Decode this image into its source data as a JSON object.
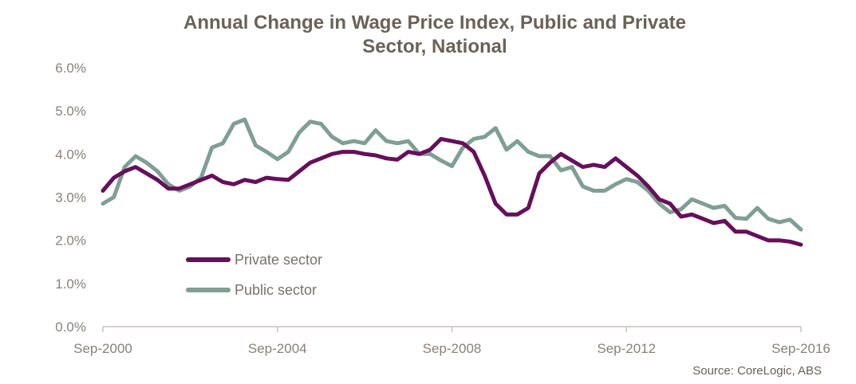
{
  "chart_data": {
    "type": "line",
    "title_lines": [
      "Annual Change in Wage Price Index, Public and Private",
      "Sector, National"
    ],
    "source": "Source: CoreLogic, ABS",
    "x_tick_labels": [
      "Sep-2000",
      "Sep-2004",
      "Sep-2008",
      "Sep-2012",
      "Sep-2016"
    ],
    "y_tick_labels": [
      "0.0%",
      "1.0%",
      "2.0%",
      "3.0%",
      "4.0%",
      "5.0%",
      "6.0%"
    ],
    "ylim": [
      0,
      6
    ],
    "x_start": "Sep-2000",
    "x_end": "Sep-2016",
    "frequency": "quarterly",
    "colors": {
      "private": "#660f5c",
      "public": "#7f9f93",
      "axis": "#c8c2bd",
      "title": "#6b6157",
      "tick": "#8a8079"
    },
    "legend_placement": "lower-left",
    "series": [
      {
        "key": "private",
        "name": "Private sector",
        "values": [
          3.15,
          3.45,
          3.6,
          3.7,
          3.55,
          3.4,
          3.2,
          3.2,
          3.3,
          3.4,
          3.5,
          3.35,
          3.3,
          3.4,
          3.35,
          3.45,
          3.42,
          3.4,
          3.6,
          3.8,
          3.9,
          4.0,
          4.05,
          4.05,
          4.0,
          3.97,
          3.9,
          3.87,
          4.05,
          4.0,
          4.1,
          4.35,
          4.3,
          4.25,
          4.05,
          3.5,
          2.85,
          2.6,
          2.6,
          2.75,
          3.55,
          3.8,
          4.0,
          3.85,
          3.7,
          3.75,
          3.7,
          3.9,
          3.7,
          3.5,
          3.25,
          2.95,
          2.85,
          2.55,
          2.6,
          2.5,
          2.4,
          2.45,
          2.2,
          2.2,
          2.1,
          2.0,
          2.0,
          1.97,
          1.9
        ]
      },
      {
        "key": "public",
        "name": "Public sector",
        "values": [
          2.85,
          3.0,
          3.7,
          3.95,
          3.8,
          3.6,
          3.3,
          3.15,
          3.25,
          3.45,
          4.15,
          4.25,
          4.7,
          4.8,
          4.2,
          4.05,
          3.88,
          4.05,
          4.5,
          4.75,
          4.7,
          4.4,
          4.25,
          4.3,
          4.25,
          4.55,
          4.3,
          4.25,
          4.3,
          4.0,
          4.0,
          3.85,
          3.72,
          4.15,
          4.35,
          4.4,
          4.6,
          4.1,
          4.3,
          4.05,
          3.95,
          3.95,
          3.62,
          3.7,
          3.25,
          3.15,
          3.15,
          3.3,
          3.42,
          3.35,
          3.15,
          2.85,
          2.65,
          2.72,
          2.95,
          2.85,
          2.75,
          2.8,
          2.52,
          2.5,
          2.75,
          2.5,
          2.42,
          2.48,
          2.25
        ]
      }
    ]
  }
}
